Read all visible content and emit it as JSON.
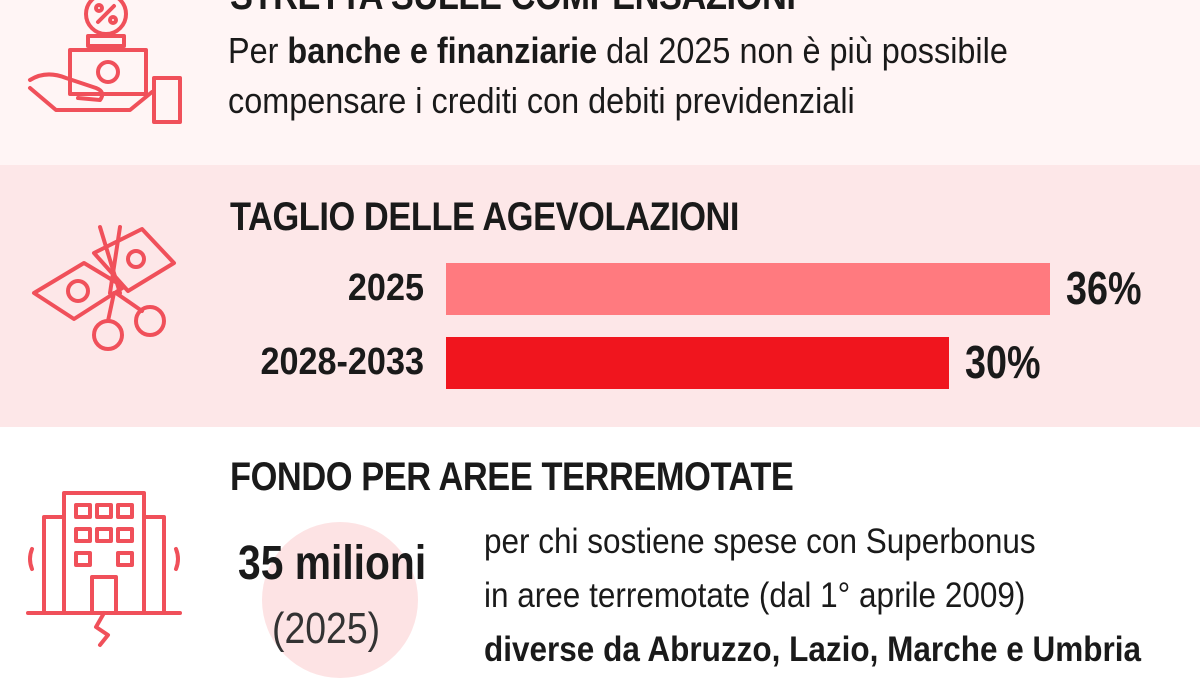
{
  "colors": {
    "accent": "#f0505a",
    "bar_2025": "#ff7a7f",
    "bar_2028": "#f0151e",
    "band_mid": "#fde7e8",
    "band_top": "#fff5f5"
  },
  "compensazioni": {
    "icon": "hand-money-percent-icon",
    "heading": "STRETTA SULLE COMPENSAZIONI",
    "line1_before": "Per ",
    "line1_bold": "banche e finanziarie",
    "line1_after": " dal 2025 non è più possibile",
    "line2": "compensare i crediti con debiti previdenziali"
  },
  "agevolazioni": {
    "icon": "scissors-cutting-money-icon",
    "heading": "TAGLIO DELLE AGEVOLAZIONI"
  },
  "chart_data": {
    "type": "bar",
    "orientation": "horizontal",
    "title": "TAGLIO DELLE AGEVOLAZIONI",
    "categories": [
      "2025",
      "2028-2033"
    ],
    "values": [
      36,
      30
    ],
    "value_labels": [
      "36%",
      "30%"
    ],
    "xlim": [
      0,
      36
    ],
    "grid": false
  },
  "terremoto": {
    "icon": "cracked-building-icon",
    "heading": "FONDO PER AREE TERREMOTATE",
    "amount": "35 milioni",
    "year": "(2025)",
    "line1": "per chi sostiene spese con Superbonus",
    "line2": "in aree terremotate (dal 1° aprile 2009)",
    "line3_bold": "diverse da Abruzzo, Lazio, Marche e Umbria"
  }
}
